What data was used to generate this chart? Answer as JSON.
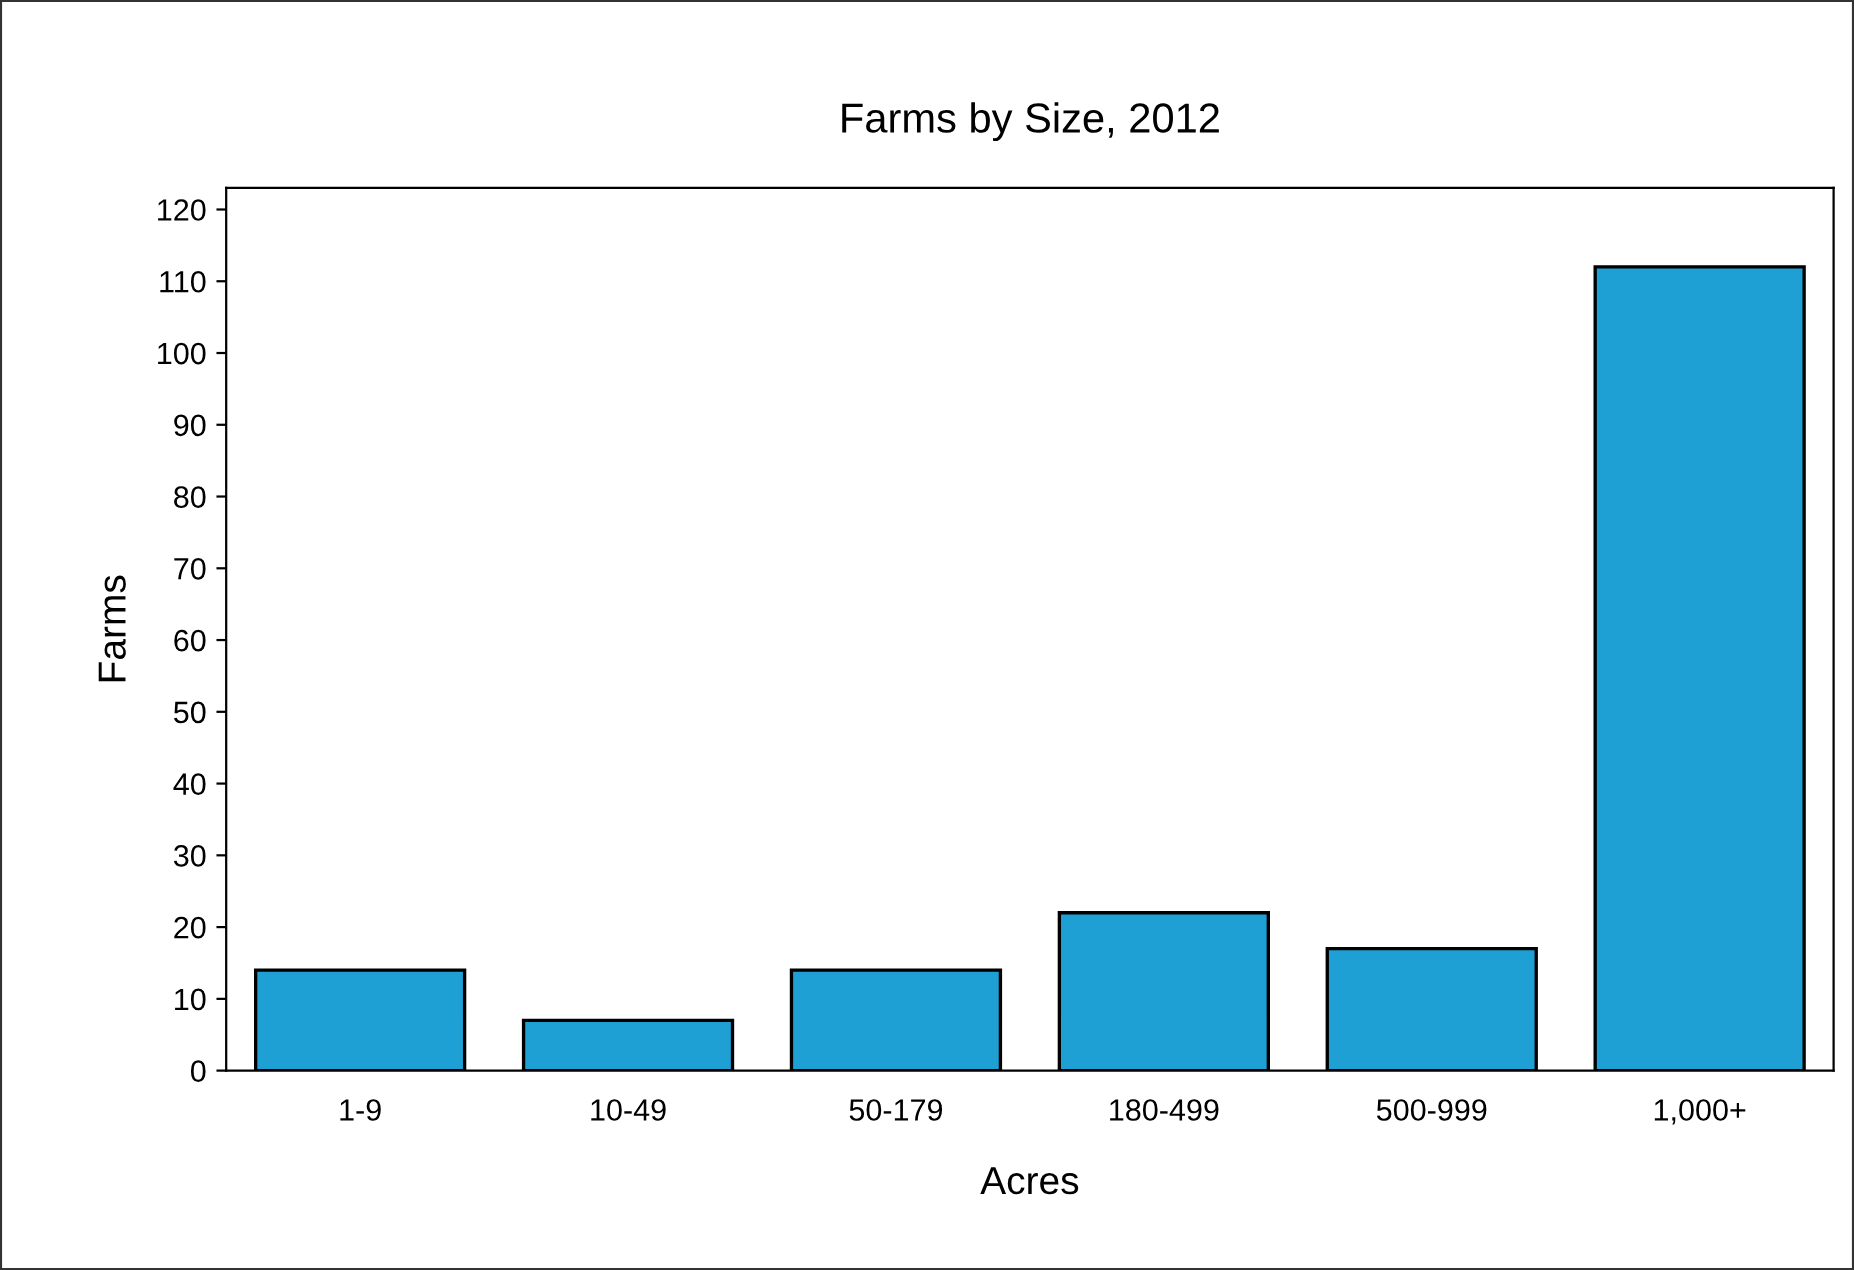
{
  "chart_data": {
    "type": "bar",
    "title": "Farms by Size, 2012",
    "xlabel": "Acres",
    "ylabel": "Farms",
    "categories": [
      "1-9",
      "10-49",
      "50-179",
      "180-499",
      "500-999",
      "1,000+"
    ],
    "values": [
      14,
      7,
      14,
      22,
      17,
      112
    ],
    "color": "#1fa0d4",
    "ylim": [
      0,
      123
    ],
    "yticks": [
      0,
      10,
      20,
      30,
      40,
      50,
      60,
      70,
      80,
      90,
      100,
      110,
      120
    ],
    "grid": false,
    "legend": false
  }
}
